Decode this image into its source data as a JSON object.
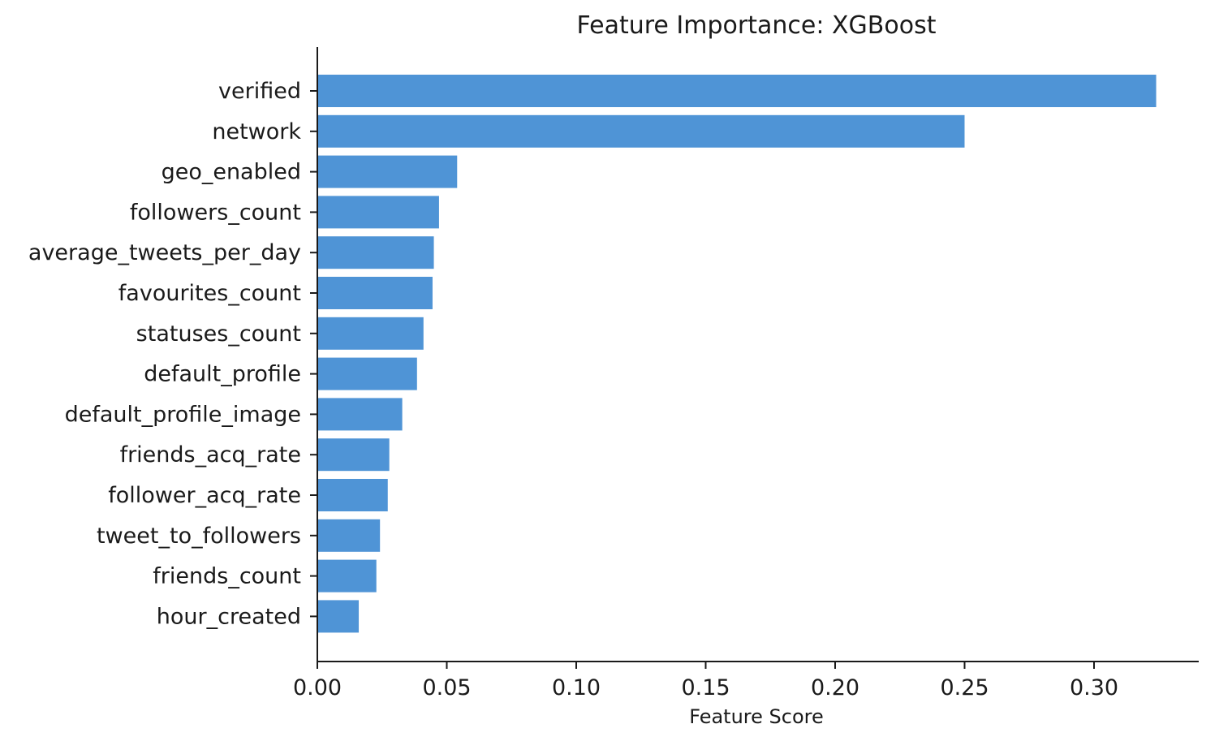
{
  "chart_data": {
    "type": "bar",
    "orientation": "horizontal",
    "title": "Feature Importance: XGBoost",
    "xlabel": "Feature Score",
    "ylabel": "",
    "xlim": [
      0,
      0.34
    ],
    "x_ticks": [
      "0.00",
      "0.05",
      "0.10",
      "0.15",
      "0.20",
      "0.25",
      "0.30"
    ],
    "x_tick_values": [
      0,
      0.05,
      0.1,
      0.15,
      0.2,
      0.25,
      0.3
    ],
    "categories": [
      "verified",
      "network",
      "geo_enabled",
      "followers_count",
      "average_tweets_per_day",
      "favourites_count",
      "statuses_count",
      "default_profile",
      "default_profile_image",
      "friends_acq_rate",
      "follower_acq_rate",
      "tweet_to_followers",
      "friends_count",
      "hour_created"
    ],
    "values": [
      0.324,
      0.25,
      0.054,
      0.047,
      0.045,
      0.0445,
      0.041,
      0.0385,
      0.0328,
      0.0278,
      0.0272,
      0.0242,
      0.0228,
      0.016
    ],
    "bar_color": "#4f94d6",
    "grid": false,
    "legend": "none"
  }
}
